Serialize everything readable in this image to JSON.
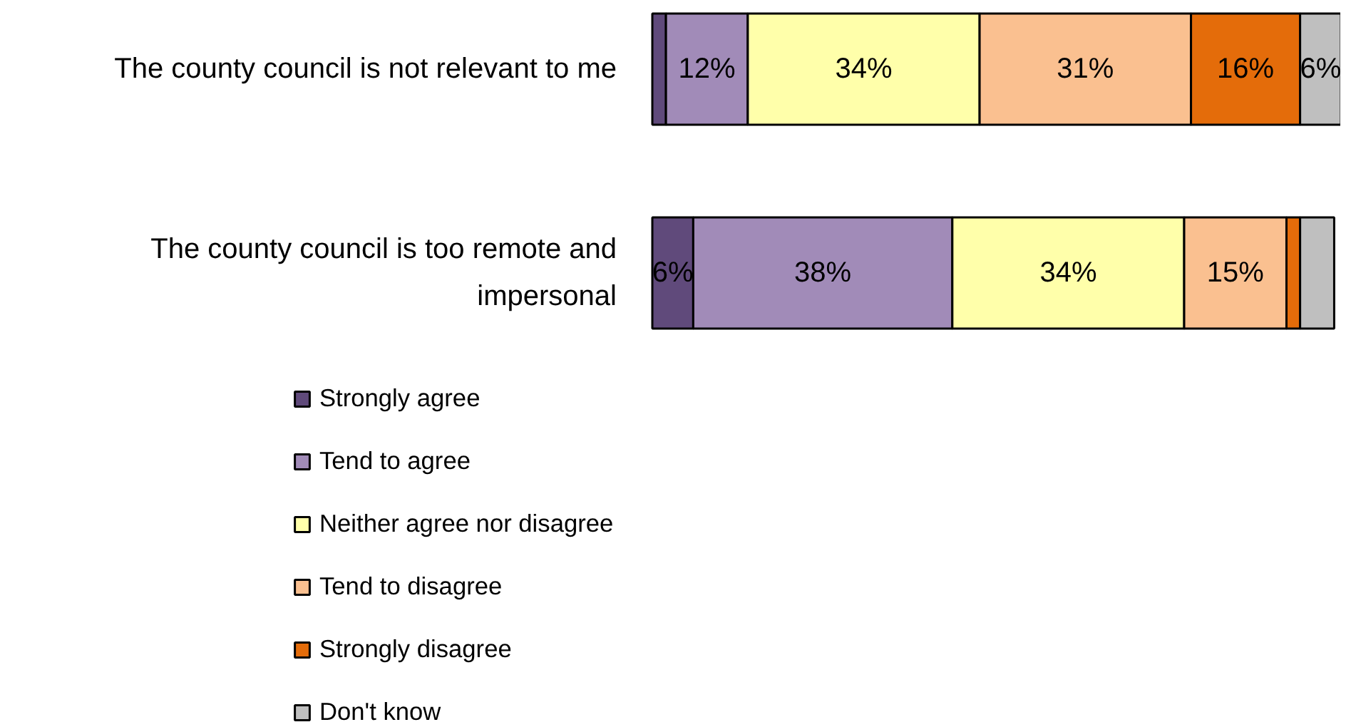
{
  "chart_data": {
    "type": "bar",
    "orientation": "horizontal",
    "stacked": true,
    "legend": "bottom",
    "categories": [
      "The county council is not relevant to me",
      "The county council is too remote and impersonal"
    ],
    "series": [
      {
        "name": "Strongly agree",
        "color": "#604a7b",
        "values": [
          2,
          6
        ],
        "value_labels": [
          null,
          "6%"
        ]
      },
      {
        "name": "Tend to agree",
        "color": "#a18bb8",
        "values": [
          12,
          38
        ],
        "value_labels": [
          "12%",
          "38%"
        ]
      },
      {
        "name": "Neither agree nor disagree",
        "color": "#ffffaa",
        "values": [
          34,
          34
        ],
        "value_labels": [
          "34%",
          "34%"
        ]
      },
      {
        "name": "Tend to disagree",
        "color": "#fac090",
        "values": [
          31,
          15
        ],
        "value_labels": [
          "31%",
          "15%"
        ]
      },
      {
        "name": "Strongly disagree",
        "color": "#e46c0a",
        "values": [
          16,
          2
        ],
        "value_labels": [
          "16%",
          null
        ]
      },
      {
        "name": "Don't know",
        "color": "#bfbfbf",
        "values": [
          6,
          5
        ],
        "value_labels": [
          "6%",
          null
        ]
      }
    ]
  }
}
